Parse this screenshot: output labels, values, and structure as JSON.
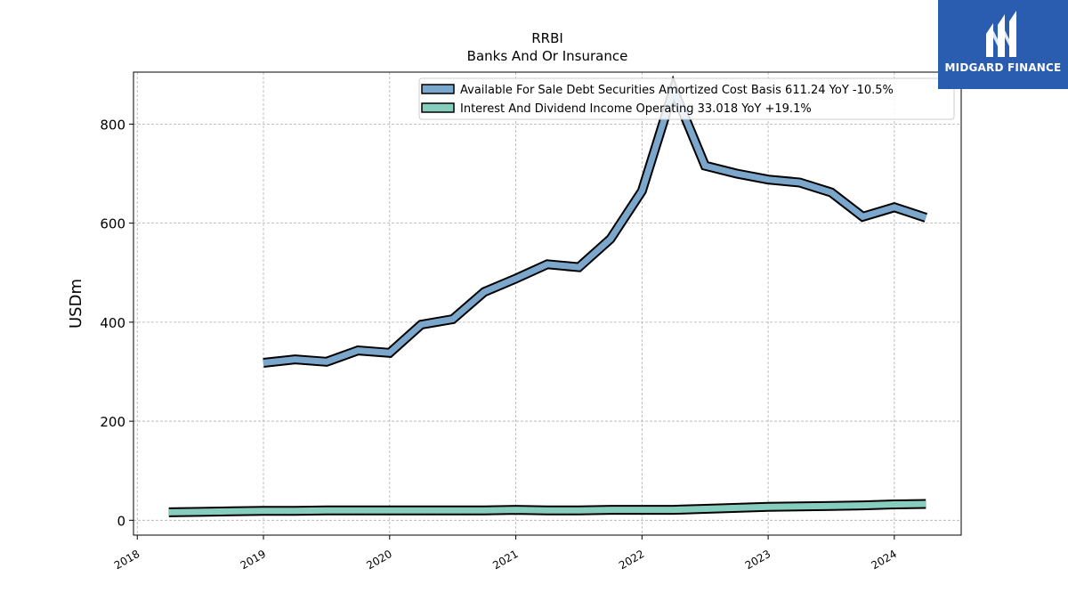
{
  "brand": {
    "name": "MIDGARD FINANCE",
    "color": "#2a5db0"
  },
  "chart_data": {
    "type": "line",
    "title": "RRBI",
    "subtitle": "Banks And Or Insurance",
    "ylabel": "USDm",
    "xlabel": "",
    "ylim": [
      -30,
      905
    ],
    "xlim": [
      2017.97,
      2024.53
    ],
    "yticks": [
      0,
      200,
      400,
      600,
      800
    ],
    "xticks": [
      "2018",
      "2019",
      "2020",
      "2021",
      "2022",
      "2023",
      "2024"
    ],
    "grid": true,
    "legend_position": "top-right",
    "series": [
      {
        "name": "Available For Sale Debt Securities Amortized Cost Basis  611.24 YoY -10.5%",
        "color": "#7ba7cc",
        "x": [
          2019.0,
          2019.25,
          2019.5,
          2019.75,
          2020.0,
          2020.25,
          2020.5,
          2020.75,
          2021.0,
          2021.25,
          2021.5,
          2021.75,
          2022.0,
          2022.25,
          2022.5,
          2022.75,
          2023.0,
          2023.25,
          2023.5,
          2023.75,
          2024.0,
          2024.25
        ],
        "y": [
          318,
          325,
          320,
          343,
          338,
          395,
          406,
          461,
          488,
          517,
          511,
          568,
          665,
          870,
          716,
          700,
          688,
          682,
          662,
          613,
          632,
          611
        ]
      },
      {
        "name": "Interest And Dividend Income Operating  33.018 YoY +19.1%",
        "color": "#86cdbd",
        "x": [
          2018.25,
          2018.5,
          2018.75,
          2019.0,
          2019.25,
          2019.5,
          2019.75,
          2020.0,
          2020.25,
          2020.5,
          2020.75,
          2021.0,
          2021.25,
          2021.5,
          2021.75,
          2022.0,
          2022.25,
          2022.5,
          2022.75,
          2023.0,
          2023.25,
          2023.5,
          2023.75,
          2024.0,
          2024.25
        ],
        "y": [
          16,
          17,
          18,
          19,
          19,
          20,
          20,
          20,
          20,
          20,
          20,
          21,
          20,
          20,
          21,
          21,
          21,
          23,
          25,
          27,
          28,
          29,
          30,
          32,
          33
        ]
      }
    ]
  }
}
